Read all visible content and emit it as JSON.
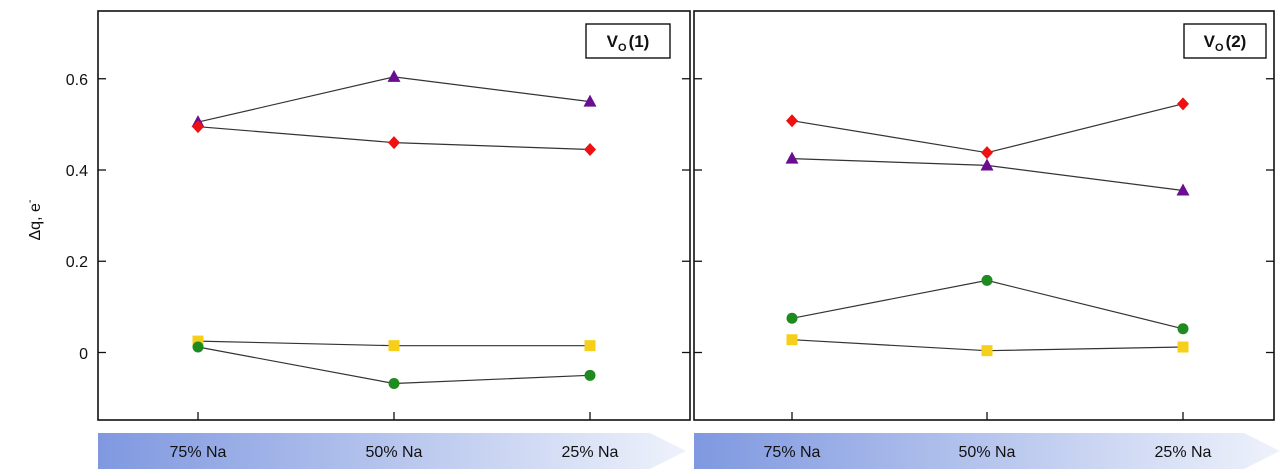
{
  "chart_data": [
    {
      "type": "line",
      "panel_label": {
        "main": "V",
        "sub": "O",
        "suffix": "(1)"
      },
      "ylabel": "Δq, e",
      "ylabel_superscript": "-",
      "ylim": [
        -0.14,
        0.75
      ],
      "yticks": [
        0,
        0.2,
        0.4,
        0.6
      ],
      "ytick_labels": [
        "0",
        "0.2",
        "0.4",
        "0.6"
      ],
      "categories": [
        "75% Na",
        "50% Na",
        "25% Na"
      ],
      "series": [
        {
          "marker": "triangle",
          "color": "#6a0d91",
          "values": [
            0.505,
            0.604,
            0.55
          ]
        },
        {
          "marker": "diamond",
          "color": "#ee1111",
          "values": [
            0.495,
            0.46,
            0.445
          ]
        },
        {
          "marker": "square",
          "color": "#f5cf1a",
          "values": [
            0.025,
            0.015,
            0.015
          ]
        },
        {
          "marker": "circle",
          "color": "#1f8a1f",
          "values": [
            0.012,
            -0.068,
            -0.05
          ]
        }
      ]
    },
    {
      "type": "line",
      "panel_label": {
        "main": "V",
        "sub": "O",
        "suffix": "(2)"
      },
      "ylim": [
        -0.14,
        0.75
      ],
      "yticks": [
        0,
        0.2,
        0.4,
        0.6
      ],
      "categories": [
        "75% Na",
        "50% Na",
        "25% Na"
      ],
      "series": [
        {
          "marker": "diamond",
          "color": "#ee1111",
          "values": [
            0.508,
            0.438,
            0.545
          ]
        },
        {
          "marker": "triangle",
          "color": "#6a0d91",
          "values": [
            0.425,
            0.41,
            0.355
          ]
        },
        {
          "marker": "circle",
          "color": "#1f8a1f",
          "values": [
            0.075,
            0.158,
            0.052
          ]
        },
        {
          "marker": "square",
          "color": "#f5cf1a",
          "values": [
            0.028,
            0.004,
            0.012
          ]
        }
      ]
    }
  ],
  "colors": {
    "line": "#333333",
    "frame": "#111111",
    "arrow_start": "#7f98e0",
    "arrow_end": "#eef2fb"
  }
}
